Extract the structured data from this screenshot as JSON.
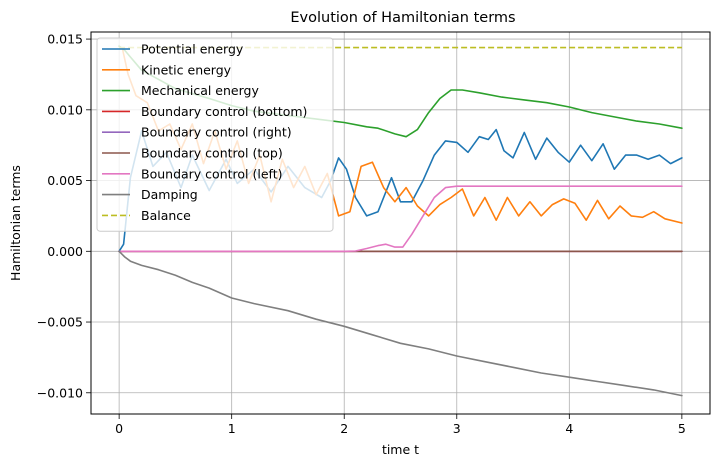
{
  "chart_data": {
    "type": "line",
    "title": "Evolution of Hamiltonian terms",
    "xlabel": "time t",
    "ylabel": "Hamiltonian terms",
    "xlim": [
      -0.25,
      5.25
    ],
    "ylim": [
      -0.0115,
      0.0155
    ],
    "xticks": [
      0,
      1,
      2,
      3,
      4,
      5
    ],
    "xtick_labels": [
      "0",
      "1",
      "2",
      "3",
      "4",
      "5"
    ],
    "yticks": [
      -0.01,
      -0.005,
      0.0,
      0.005,
      0.01,
      0.015
    ],
    "ytick_labels": [
      "−0.010",
      "−0.005",
      "0.000",
      "0.005",
      "0.010",
      "0.015"
    ],
    "grid": true,
    "legend_position": "top-left",
    "series": [
      {
        "name": "Potential energy",
        "color": "#1f77b4",
        "dash": "solid",
        "x": [
          0,
          0.04,
          0.1,
          0.2,
          0.3,
          0.42,
          0.55,
          0.65,
          0.8,
          0.95,
          1.05,
          1.2,
          1.35,
          1.5,
          1.65,
          1.8,
          1.88,
          1.95,
          2.02,
          2.1,
          2.2,
          2.3,
          2.42,
          2.5,
          2.6,
          2.7,
          2.8,
          2.9,
          3.0,
          3.1,
          3.2,
          3.28,
          3.35,
          3.42,
          3.5,
          3.6,
          3.7,
          3.8,
          3.9,
          4.0,
          4.1,
          4.2,
          4.3,
          4.4,
          4.5,
          4.6,
          4.7,
          4.8,
          4.9,
          5.0
        ],
        "y": [
          0,
          0.0005,
          0.0052,
          0.0085,
          0.006,
          0.007,
          0.0045,
          0.0068,
          0.0043,
          0.0065,
          0.0048,
          0.0058,
          0.0042,
          0.006,
          0.0045,
          0.0038,
          0.005,
          0.0066,
          0.0058,
          0.0038,
          0.0025,
          0.0028,
          0.0052,
          0.0035,
          0.0035,
          0.005,
          0.0068,
          0.0078,
          0.0077,
          0.007,
          0.0081,
          0.0079,
          0.0086,
          0.0071,
          0.0066,
          0.0084,
          0.0065,
          0.008,
          0.007,
          0.0063,
          0.0075,
          0.0064,
          0.0076,
          0.0058,
          0.0068,
          0.0068,
          0.0065,
          0.0068,
          0.0062,
          0.0066
        ]
      },
      {
        "name": "Kinetic energy",
        "color": "#ff7f0e",
        "dash": "solid",
        "x": [
          0,
          0.03,
          0.08,
          0.15,
          0.25,
          0.35,
          0.45,
          0.55,
          0.65,
          0.75,
          0.85,
          0.95,
          1.05,
          1.15,
          1.25,
          1.35,
          1.45,
          1.55,
          1.65,
          1.75,
          1.85,
          1.95,
          2.05,
          2.15,
          2.25,
          2.35,
          2.45,
          2.55,
          2.65,
          2.75,
          2.85,
          2.95,
          3.05,
          3.15,
          3.25,
          3.35,
          3.45,
          3.55,
          3.65,
          3.75,
          3.85,
          3.95,
          4.05,
          4.15,
          4.25,
          4.35,
          4.45,
          4.55,
          4.65,
          4.75,
          4.85,
          5.0
        ],
        "y": [
          0.0145,
          0.0143,
          0.0125,
          0.011,
          0.0105,
          0.0085,
          0.009,
          0.0072,
          0.009,
          0.0062,
          0.0085,
          0.0058,
          0.0078,
          0.0048,
          0.0068,
          0.0035,
          0.0065,
          0.0045,
          0.006,
          0.004,
          0.0055,
          0.0025,
          0.0028,
          0.006,
          0.0063,
          0.0045,
          0.0035,
          0.0045,
          0.0032,
          0.0025,
          0.0033,
          0.0038,
          0.0044,
          0.0025,
          0.0038,
          0.0022,
          0.0038,
          0.0025,
          0.0035,
          0.0025,
          0.0033,
          0.0037,
          0.0034,
          0.0022,
          0.0036,
          0.0023,
          0.0032,
          0.0025,
          0.0024,
          0.0028,
          0.0023,
          0.002
        ]
      },
      {
        "name": "Mechanical energy",
        "color": "#2ca02c",
        "dash": "solid",
        "x": [
          0,
          0.05,
          0.2,
          0.5,
          0.8,
          1.0,
          1.2,
          1.5,
          1.8,
          2.0,
          2.2,
          2.3,
          2.45,
          2.55,
          2.65,
          2.75,
          2.85,
          2.95,
          3.05,
          3.2,
          3.4,
          3.6,
          3.8,
          4.0,
          4.2,
          4.4,
          4.6,
          4.8,
          5.0
        ],
        "y": [
          0.0145,
          0.0142,
          0.0128,
          0.0115,
          0.0108,
          0.0103,
          0.0099,
          0.0096,
          0.0093,
          0.0091,
          0.0088,
          0.0087,
          0.0083,
          0.0081,
          0.0086,
          0.0098,
          0.0108,
          0.0114,
          0.0114,
          0.0112,
          0.0109,
          0.0107,
          0.0105,
          0.0102,
          0.0098,
          0.0095,
          0.0092,
          0.009,
          0.0087
        ]
      },
      {
        "name": "Boundary control (bottom)",
        "color": "#d62728",
        "dash": "solid",
        "x": [
          0,
          5.0
        ],
        "y": [
          0,
          0
        ]
      },
      {
        "name": "Boundary control (right)",
        "color": "#9467bd",
        "dash": "solid",
        "x": [
          0,
          5.0
        ],
        "y": [
          0,
          0
        ]
      },
      {
        "name": "Boundary control (top)",
        "color": "#8c564b",
        "dash": "solid",
        "x": [
          0,
          5.0
        ],
        "y": [
          0,
          0
        ]
      },
      {
        "name": "Boundary control (left)",
        "color": "#e377c2",
        "dash": "solid",
        "x": [
          0,
          2.0,
          2.1,
          2.2,
          2.3,
          2.37,
          2.45,
          2.52,
          2.6,
          2.7,
          2.8,
          2.9,
          3.0,
          3.5,
          4.0,
          4.5,
          5.0
        ],
        "y": [
          0,
          0,
          2e-05,
          0.0002,
          0.0004,
          0.0005,
          0.0003,
          0.0003,
          0.0012,
          0.0025,
          0.0038,
          0.0045,
          0.0046,
          0.0046,
          0.0046,
          0.0046,
          0.0046
        ]
      },
      {
        "name": "Damping",
        "color": "#7f7f7f",
        "dash": "solid",
        "x": [
          0,
          0.05,
          0.1,
          0.2,
          0.35,
          0.5,
          0.65,
          0.8,
          1.0,
          1.2,
          1.5,
          1.75,
          2.0,
          2.25,
          2.5,
          2.75,
          3.0,
          3.25,
          3.5,
          3.75,
          4.0,
          4.25,
          4.5,
          4.75,
          5.0
        ],
        "y": [
          0,
          -0.0004,
          -0.0007,
          -0.001,
          -0.0013,
          -0.0017,
          -0.0022,
          -0.0026,
          -0.0033,
          -0.0037,
          -0.0042,
          -0.0048,
          -0.0053,
          -0.0059,
          -0.0065,
          -0.0069,
          -0.0074,
          -0.0078,
          -0.0082,
          -0.0086,
          -0.0089,
          -0.0092,
          -0.0095,
          -0.0098,
          -0.0102
        ]
      },
      {
        "name": "Balance",
        "color": "#bcbd22",
        "dash": "dashed",
        "x": [
          0,
          5.0
        ],
        "y": [
          0.0144,
          0.0144
        ]
      }
    ]
  }
}
